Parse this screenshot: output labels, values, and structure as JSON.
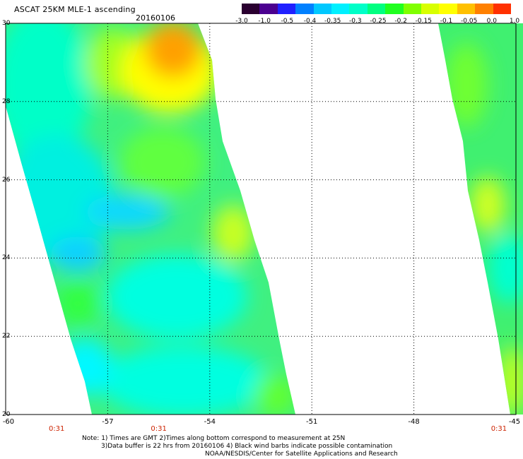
{
  "header": {
    "title": "ASCAT 25KM MLE-1 ascending",
    "date": "20160106"
  },
  "colorbar": {
    "colors": [
      "#2a0030",
      "#4b0090",
      "#2020ff",
      "#0080ff",
      "#00c8ff",
      "#00f0ff",
      "#00ffc8",
      "#00ff80",
      "#20ff20",
      "#80ff00",
      "#d8ff00",
      "#ffff00",
      "#ffc000",
      "#ff8000",
      "#ff3000"
    ],
    "tick_labels": [
      "-3.0",
      "-1.0",
      "-0.5",
      "-0.4",
      "-0.35",
      "-0.3",
      "-0.25",
      "-0.2",
      "-0.15",
      "-0.1",
      "-0.05",
      "0.0",
      "1.0"
    ]
  },
  "map": {
    "lat_labels": [
      "30",
      "28",
      "26",
      "24",
      "22",
      "20"
    ],
    "lon_labels": [
      "-60",
      "-57",
      "-54",
      "-51",
      "-48",
      "-45"
    ],
    "lon_range": [
      -60,
      -45
    ],
    "lat_range": [
      20,
      30
    ],
    "time_labels": [
      {
        "text": "0:31",
        "lon": -58.5
      },
      {
        "text": "0:31",
        "lon": -55.5
      },
      {
        "text": "0:31",
        "lon": -45.5
      }
    ]
  },
  "notes": {
    "line1": "Note: 1) Times are GMT 2)Times along bottom correspond to measurement at 25N",
    "line2": "3)Data buffer is 22 hrs from 20160106 4) Black wind barbs indicate possible contamination",
    "line3": "NOAA/NESDIS/Center for Satellite Applications and Research"
  }
}
